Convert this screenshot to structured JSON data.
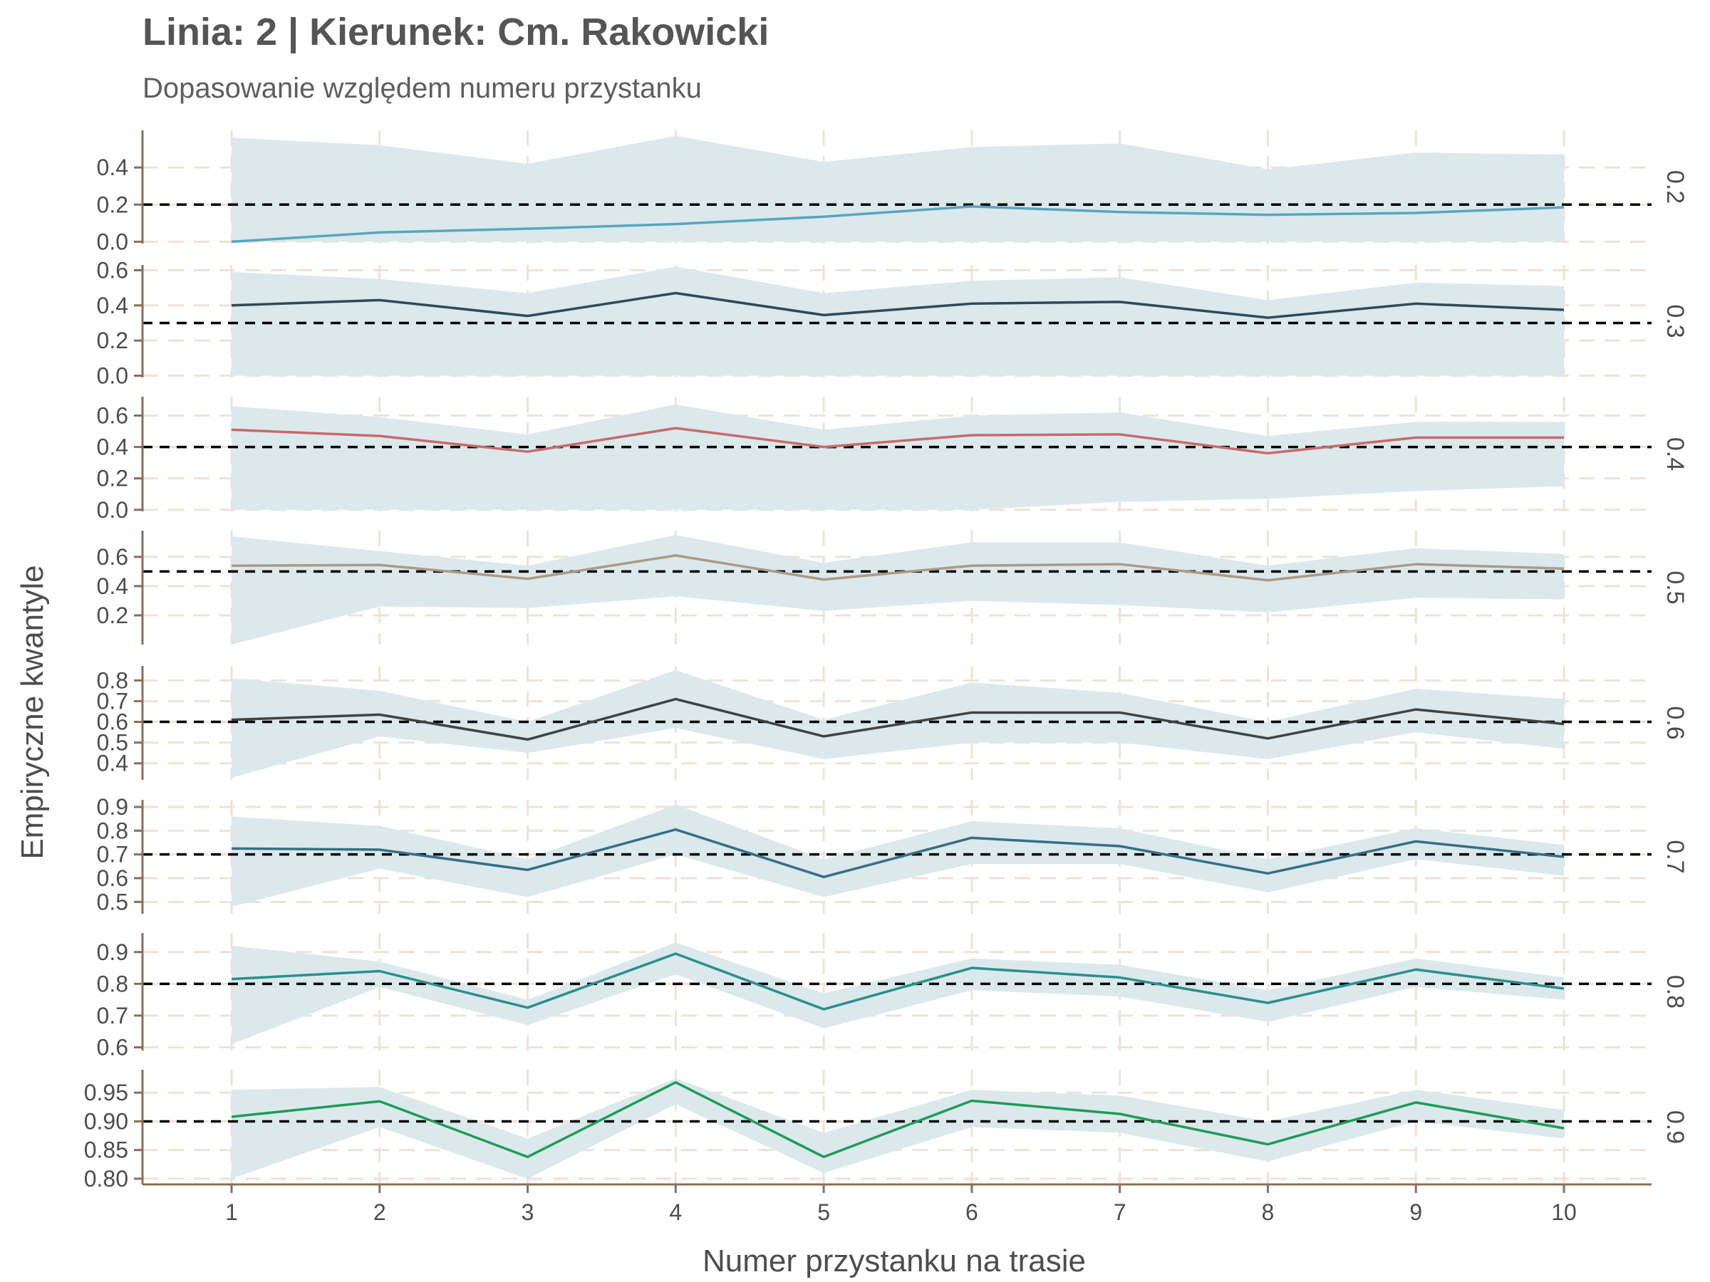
{
  "title": "Linia: 2 | Kierunek: Cm. Rakowicki",
  "subtitle": "Dopasowanie względem numeru przystanku",
  "chart_data": {
    "type": "line",
    "title": "Linia: 2 | Kierunek: Cm. Rakowicki",
    "subtitle": "Dopasowanie względem numeru przystanku",
    "xlabel": "Numer przystanku na trasie",
    "ylabel": "Empiryczne kwantyle",
    "x": [
      1,
      2,
      3,
      4,
      5,
      6,
      7,
      8,
      9,
      10
    ],
    "x_ticks": [
      "1",
      "2",
      "3",
      "4",
      "5",
      "6",
      "7",
      "8",
      "9",
      "10"
    ],
    "grid": true,
    "colors": {
      "ribbon": "#dbe9ec",
      "axis": "#8b6f55",
      "grid": "#efe2d5",
      "reference": "#000000",
      "text": "#4d4d4d"
    },
    "facets": [
      {
        "label": "0.2",
        "reference": 0.2,
        "color": "#5aa5c0",
        "ylim": [
          -0.01,
          0.6
        ],
        "y_ticks": [
          0.0,
          0.2,
          0.4
        ],
        "y_tick_labels": [
          "0.0",
          "0.2",
          "0.4"
        ],
        "values": [
          0.0,
          0.05,
          0.07,
          0.095,
          0.135,
          0.19,
          0.16,
          0.145,
          0.155,
          0.185
        ],
        "lower": [
          0.0,
          0.0,
          0.0,
          0.0,
          0.0,
          0.0,
          0.0,
          0.0,
          0.0,
          0.0
        ],
        "upper": [
          0.56,
          0.52,
          0.42,
          0.57,
          0.43,
          0.51,
          0.53,
          0.39,
          0.48,
          0.47
        ]
      },
      {
        "label": "0.3",
        "reference": 0.3,
        "color": "#2e4a58",
        "ylim": [
          -0.01,
          0.63
        ],
        "y_ticks": [
          0.0,
          0.2,
          0.4,
          0.6
        ],
        "y_tick_labels": [
          "0.0",
          "0.2",
          "0.4",
          "0.6"
        ],
        "values": [
          0.4,
          0.43,
          0.34,
          0.47,
          0.345,
          0.41,
          0.42,
          0.33,
          0.41,
          0.375
        ],
        "lower": [
          0.0,
          0.0,
          0.0,
          0.0,
          0.0,
          0.0,
          0.0,
          0.0,
          0.0,
          0.0
        ],
        "upper": [
          0.59,
          0.55,
          0.47,
          0.62,
          0.47,
          0.54,
          0.56,
          0.43,
          0.53,
          0.51
        ]
      },
      {
        "label": "0.4",
        "reference": 0.4,
        "color": "#c86a6a",
        "ylim": [
          -0.01,
          0.72
        ],
        "y_ticks": [
          0.0,
          0.2,
          0.4,
          0.6
        ],
        "y_tick_labels": [
          "0.0",
          "0.2",
          "0.4",
          "0.6"
        ],
        "values": [
          0.51,
          0.47,
          0.37,
          0.52,
          0.4,
          0.475,
          0.48,
          0.36,
          0.46,
          0.46
        ],
        "lower": [
          0.0,
          0.0,
          0.0,
          0.0,
          0.0,
          0.0,
          0.05,
          0.07,
          0.12,
          0.15
        ],
        "upper": [
          0.66,
          0.59,
          0.48,
          0.67,
          0.51,
          0.6,
          0.62,
          0.47,
          0.56,
          0.56
        ]
      },
      {
        "label": "0.5",
        "reference": 0.5,
        "color": "#ad9a84",
        "ylim": [
          0.0,
          0.78
        ],
        "y_ticks": [
          0.2,
          0.4,
          0.6
        ],
        "y_tick_labels": [
          "0.2",
          "0.4",
          "0.6"
        ],
        "values": [
          0.54,
          0.545,
          0.45,
          0.61,
          0.445,
          0.54,
          0.55,
          0.44,
          0.55,
          0.52
        ],
        "lower": [
          0.0,
          0.26,
          0.25,
          0.33,
          0.23,
          0.3,
          0.27,
          0.22,
          0.32,
          0.31
        ],
        "upper": [
          0.74,
          0.64,
          0.54,
          0.75,
          0.56,
          0.7,
          0.7,
          0.54,
          0.66,
          0.62
        ]
      },
      {
        "label": "0.6",
        "reference": 0.6,
        "color": "#3d4443",
        "ylim": [
          0.32,
          0.87
        ],
        "y_ticks": [
          0.4,
          0.5,
          0.6,
          0.7,
          0.8
        ],
        "y_tick_labels": [
          "0.4",
          "0.5",
          "0.6",
          "0.7",
          "0.8"
        ],
        "values": [
          0.61,
          0.635,
          0.515,
          0.71,
          0.53,
          0.645,
          0.645,
          0.52,
          0.66,
          0.59
        ],
        "lower": [
          0.33,
          0.53,
          0.45,
          0.57,
          0.42,
          0.5,
          0.5,
          0.42,
          0.55,
          0.47
        ],
        "upper": [
          0.81,
          0.75,
          0.6,
          0.85,
          0.61,
          0.79,
          0.74,
          0.6,
          0.76,
          0.71
        ]
      },
      {
        "label": "0.7",
        "reference": 0.7,
        "color": "#356f86",
        "ylim": [
          0.45,
          0.93
        ],
        "y_ticks": [
          0.5,
          0.6,
          0.7,
          0.8,
          0.9
        ],
        "y_tick_labels": [
          "0.5",
          "0.6",
          "0.7",
          "0.8",
          "0.9"
        ],
        "values": [
          0.725,
          0.72,
          0.635,
          0.805,
          0.605,
          0.77,
          0.735,
          0.62,
          0.755,
          0.69
        ],
        "lower": [
          0.48,
          0.64,
          0.52,
          0.7,
          0.52,
          0.66,
          0.66,
          0.54,
          0.68,
          0.61
        ],
        "upper": [
          0.86,
          0.82,
          0.68,
          0.91,
          0.68,
          0.84,
          0.81,
          0.68,
          0.81,
          0.74
        ]
      },
      {
        "label": "0.8",
        "reference": 0.8,
        "color": "#2a8f8c",
        "ylim": [
          0.59,
          0.96
        ],
        "y_ticks": [
          0.6,
          0.7,
          0.8,
          0.9
        ],
        "y_tick_labels": [
          "0.6",
          "0.7",
          "0.8",
          "0.9"
        ],
        "values": [
          0.815,
          0.84,
          0.725,
          0.895,
          0.72,
          0.85,
          0.82,
          0.74,
          0.845,
          0.785
        ],
        "lower": [
          0.61,
          0.79,
          0.67,
          0.83,
          0.66,
          0.78,
          0.76,
          0.68,
          0.79,
          0.75
        ],
        "upper": [
          0.92,
          0.87,
          0.75,
          0.93,
          0.77,
          0.88,
          0.86,
          0.78,
          0.88,
          0.82
        ]
      },
      {
        "label": "0.9",
        "reference": 0.9,
        "color": "#1e9c55",
        "ylim": [
          0.79,
          0.99
        ],
        "y_ticks": [
          0.8,
          0.85,
          0.9,
          0.95
        ],
        "y_tick_labels": [
          "0.80",
          "0.85",
          "0.90",
          "0.95"
        ],
        "values": [
          0.908,
          0.935,
          0.838,
          0.968,
          0.838,
          0.936,
          0.913,
          0.86,
          0.933,
          0.888
        ],
        "lower": [
          0.8,
          0.89,
          0.8,
          0.93,
          0.81,
          0.89,
          0.88,
          0.83,
          0.9,
          0.87
        ],
        "upper": [
          0.955,
          0.96,
          0.87,
          0.975,
          0.88,
          0.955,
          0.945,
          0.9,
          0.955,
          0.92
        ]
      }
    ]
  }
}
